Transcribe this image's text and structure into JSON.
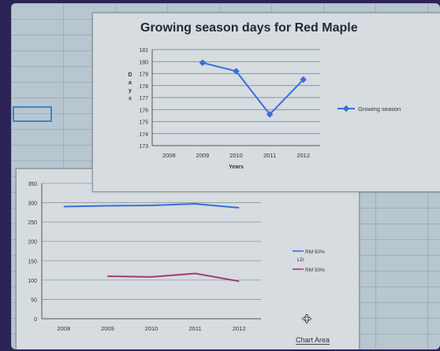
{
  "chart_data": [
    {
      "type": "line",
      "title": "Growing season days for Red Maple",
      "xlabel": "Years",
      "ylabel": "Days",
      "categories": [
        "2008",
        "2009",
        "2010",
        "2011",
        "2012"
      ],
      "ylim": [
        173,
        181
      ],
      "yticks": [
        173,
        174,
        175,
        176,
        177,
        178,
        179,
        180,
        181
      ],
      "grid": true,
      "legend_position": "right",
      "series": [
        {
          "name": "Growing season",
          "values": [
            null,
            179.9,
            179.2,
            175.6,
            178.5
          ],
          "color": "#3a6fd8"
        }
      ]
    },
    {
      "type": "line",
      "categories": [
        "2008",
        "2009",
        "2010",
        "2011",
        "2012"
      ],
      "ylim": [
        0,
        350
      ],
      "yticks": [
        0,
        50,
        100,
        150,
        200,
        250,
        300,
        350
      ],
      "grid": true,
      "legend_position": "right",
      "series": [
        {
          "name": "RM 50% LD",
          "values": [
            290,
            292,
            293,
            297,
            287
          ],
          "color": "#3a6fd8"
        },
        {
          "name": "RM 50%",
          "values": [
            null,
            110,
            108,
            117,
            97
          ],
          "color": "#a23b77"
        }
      ]
    }
  ],
  "chart1": {
    "ylabel_letters": [
      "D",
      "a",
      "y",
      "s"
    ]
  },
  "chart2": {
    "legend_ld_line1": "RM 50%",
    "legend_ld_line2": "LD"
  },
  "chart_area_label": "Chart Area",
  "icons": {
    "cursor": "move-cursor-icon"
  }
}
